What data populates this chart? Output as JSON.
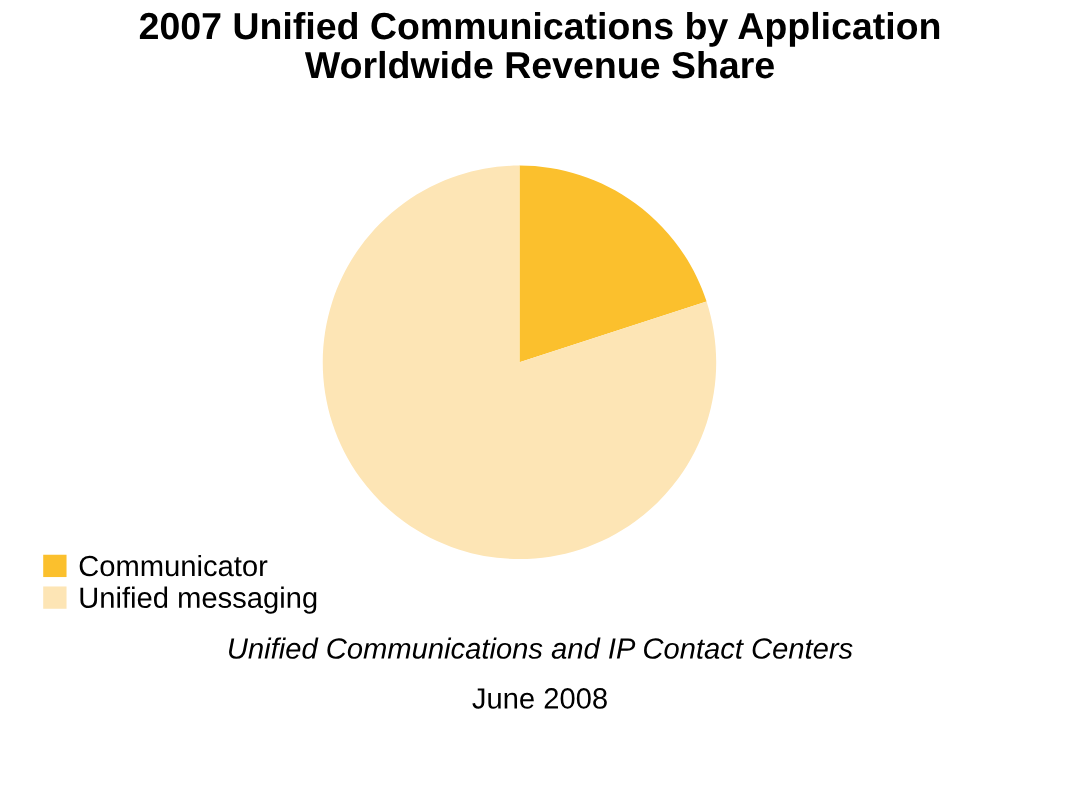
{
  "chart_data": {
    "type": "pie",
    "title": "2007 Unified Communications by Application\nWorldwide Revenue Share",
    "categories": [
      "Communicator",
      "Unified messaging"
    ],
    "values": [
      20,
      80
    ],
    "colors": [
      "#fbc02d",
      "#fde5b5"
    ],
    "legend": "bottom left",
    "annotations": [
      "Unified Communications and IP Contact Centers",
      "June 2008"
    ]
  }
}
